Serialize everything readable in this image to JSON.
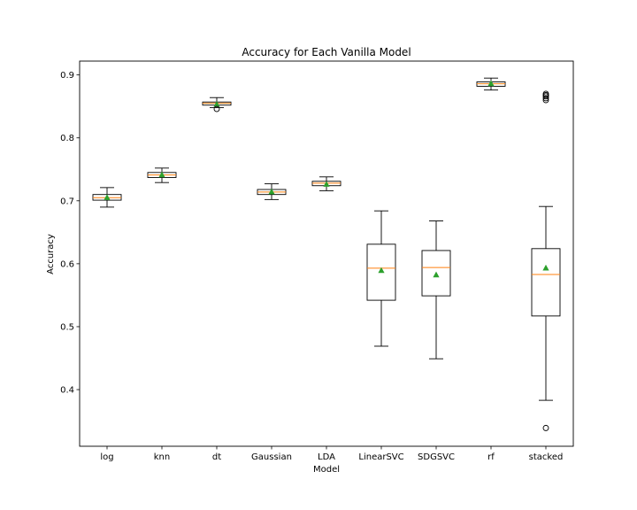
{
  "chart_data": {
    "type": "box",
    "title": "Accuracy for Each Vanilla Model",
    "xlabel": "Model",
    "ylabel": "Accuracy",
    "ylim": [
      0.31,
      0.922
    ],
    "yticks": [
      0.4,
      0.5,
      0.6,
      0.7,
      0.8,
      0.9
    ],
    "ytick_labels": [
      "0.4",
      "0.5",
      "0.6",
      "0.7",
      "0.8",
      "0.9"
    ],
    "grid": false,
    "legend": "none",
    "colors": {
      "box": "#000000",
      "median": "#ff7f0e",
      "mean": "#2ca02c",
      "flier": "#000000"
    },
    "categories": [
      "log",
      "knn",
      "dt",
      "Gaussian",
      "LDA",
      "LinearSVC",
      "SDGSVC",
      "rf",
      "stacked"
    ],
    "boxes": [
      {
        "name": "log",
        "whislo": 0.69,
        "q1": 0.701,
        "med": 0.705,
        "q3": 0.71,
        "whishi": 0.721,
        "mean": 0.705,
        "fliers": []
      },
      {
        "name": "knn",
        "whislo": 0.729,
        "q1": 0.737,
        "med": 0.741,
        "q3": 0.745,
        "whishi": 0.752,
        "mean": 0.741,
        "fliers": []
      },
      {
        "name": "dt",
        "whislo": 0.848,
        "q1": 0.852,
        "med": 0.855,
        "q3": 0.857,
        "whishi": 0.864,
        "mean": 0.853,
        "fliers": [
          0.846
        ]
      },
      {
        "name": "Gaussian",
        "whislo": 0.702,
        "q1": 0.71,
        "med": 0.714,
        "q3": 0.718,
        "whishi": 0.727,
        "mean": 0.714,
        "fliers": []
      },
      {
        "name": "LDA",
        "whislo": 0.716,
        "q1": 0.724,
        "med": 0.728,
        "q3": 0.731,
        "whishi": 0.738,
        "mean": 0.726,
        "fliers": []
      },
      {
        "name": "LinearSVC",
        "whislo": 0.469,
        "q1": 0.542,
        "med": 0.593,
        "q3": 0.631,
        "whishi": 0.684,
        "mean": 0.589,
        "fliers": []
      },
      {
        "name": "SDGSVC",
        "whislo": 0.449,
        "q1": 0.549,
        "med": 0.594,
        "q3": 0.621,
        "whishi": 0.668,
        "mean": 0.582,
        "fliers": []
      },
      {
        "name": "rf",
        "whislo": 0.876,
        "q1": 0.882,
        "med": 0.886,
        "q3": 0.889,
        "whishi": 0.895,
        "mean": 0.886,
        "fliers": []
      },
      {
        "name": "stacked",
        "whislo": 0.383,
        "q1": 0.517,
        "med": 0.583,
        "q3": 0.624,
        "whishi": 0.691,
        "mean": 0.593,
        "fliers": [
          0.339,
          0.86,
          0.863,
          0.866,
          0.868,
          0.87
        ]
      }
    ]
  }
}
